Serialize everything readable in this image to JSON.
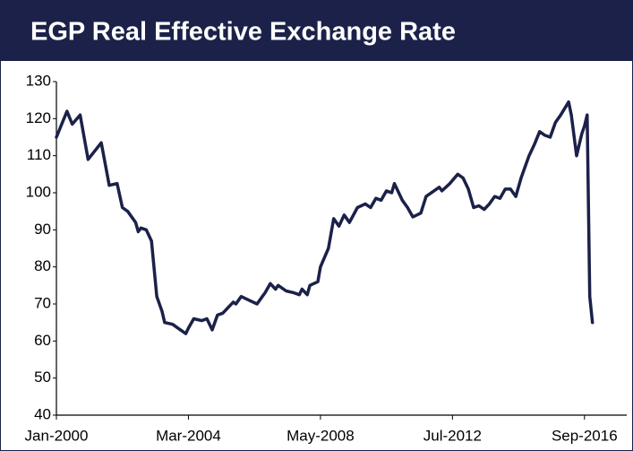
{
  "chart_data": {
    "type": "line",
    "title": "EGP Real Effective Exchange Rate",
    "x": [
      "2000-01",
      "2000-05",
      "2000-07",
      "2000-10",
      "2001-01",
      "2001-06",
      "2001-09",
      "2001-12",
      "2002-02",
      "2002-04",
      "2002-07",
      "2002-08",
      "2002-09",
      "2002-11",
      "2003-01",
      "2003-03",
      "2003-05",
      "2003-06",
      "2003-09",
      "2003-11",
      "2004-02",
      "2004-03",
      "2004-05",
      "2004-08",
      "2004-10",
      "2004-12",
      "2005-02",
      "2005-04",
      "2005-06",
      "2005-08",
      "2005-09",
      "2005-11",
      "2006-02",
      "2006-05",
      "2006-07",
      "2006-08",
      "2006-10",
      "2006-12",
      "2007-01",
      "2007-04",
      "2007-07",
      "2007-09",
      "2007-10",
      "2007-12",
      "2008-01",
      "2008-04",
      "2008-05",
      "2008-08",
      "2008-10",
      "2008-12",
      "2009-02",
      "2009-04",
      "2009-07",
      "2009-10",
      "2009-12",
      "2010-02",
      "2010-04",
      "2010-06",
      "2010-08",
      "2010-09",
      "2010-12",
      "2011-02",
      "2011-04",
      "2011-07",
      "2011-09",
      "2011-12",
      "2012-02",
      "2012-03",
      "2012-06",
      "2012-09",
      "2012-11",
      "2013-01",
      "2013-03",
      "2013-05",
      "2013-07",
      "2013-09",
      "2013-11",
      "2014-01",
      "2014-03",
      "2014-05",
      "2014-07",
      "2014-09",
      "2014-12",
      "2015-02",
      "2015-04",
      "2015-06",
      "2015-08",
      "2015-10",
      "2015-12",
      "2016-03",
      "2016-04",
      "2016-06",
      "2016-07",
      "2016-08",
      "2016-09",
      "2016-10",
      "2016-11",
      "2016-12"
    ],
    "series": [
      {
        "name": "EGP REER",
        "color": "#1b2148",
        "values": [
          115,
          122,
          118.5,
          121,
          109,
          113.5,
          102,
          102.5,
          96,
          95,
          92,
          89.5,
          90.5,
          90,
          87,
          72,
          68,
          65,
          64.5,
          63.5,
          62,
          63.5,
          66,
          65.5,
          66,
          63,
          67,
          67.5,
          69,
          70.5,
          70,
          72,
          71,
          70,
          72,
          73,
          75.5,
          74,
          75,
          73.5,
          73,
          72.5,
          74,
          72.5,
          75,
          76,
          80,
          85,
          93,
          91,
          94,
          92,
          96,
          97,
          96,
          98.5,
          98,
          100.5,
          100,
          102.5,
          98,
          96,
          93.5,
          94.5,
          99,
          100.5,
          101.5,
          100.5,
          102.5,
          105,
          104,
          101,
          96,
          96.5,
          95.5,
          97,
          99,
          98.5,
          101,
          101,
          99,
          104,
          110,
          113,
          116.5,
          115.5,
          115,
          119,
          121,
          124.5,
          121,
          110,
          113,
          116,
          118,
          121,
          72,
          65
        ]
      }
    ],
    "xlim": [
      "2000-01",
      "2018-01"
    ],
    "xticks": [
      {
        "value": "2000-01",
        "label": "Jan-2000"
      },
      {
        "value": "2004-03",
        "label": "Mar-2004"
      },
      {
        "value": "2008-05",
        "label": "May-2008"
      },
      {
        "value": "2012-07",
        "label": "Jul-2012"
      },
      {
        "value": "2016-09",
        "label": "Sep-2016"
      }
    ],
    "ylim": [
      40,
      130
    ],
    "yticks": [
      40,
      50,
      60,
      70,
      80,
      90,
      100,
      110,
      120,
      130
    ],
    "grid": false
  }
}
